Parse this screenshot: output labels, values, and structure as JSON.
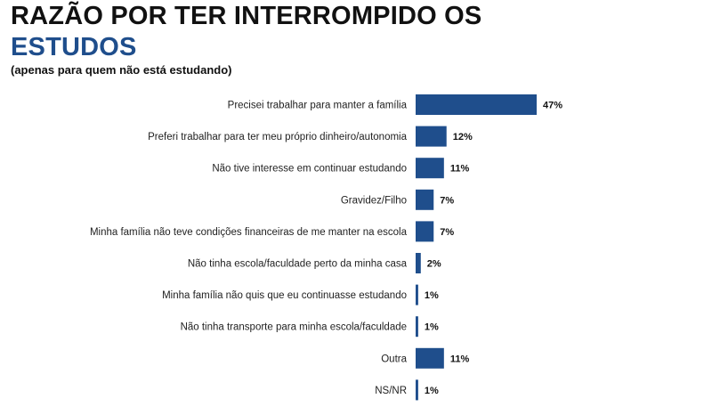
{
  "header": {
    "title_line1": "RAZÃO POR TER INTERROMPIDO OS",
    "title_line2": "ESTUDOS",
    "subtitle": "(apenas para quem não está estudando)"
  },
  "colors": {
    "bar": "#1f4e8c",
    "title_accent": "#1f4e8c"
  },
  "chart_data": {
    "type": "bar",
    "orientation": "horizontal",
    "title": "RAZÃO POR TER INTERROMPIDO OS ESTUDOS",
    "subtitle": "(apenas para quem não está estudando)",
    "xlabel": "",
    "ylabel": "",
    "xlim": [
      0,
      47
    ],
    "grid": false,
    "categories": [
      "Precisei trabalhar para manter a família",
      "Preferi trabalhar para ter meu próprio dinheiro/autonomia",
      "Não tive interesse em continuar estudando",
      "Gravidez/Filho",
      "Minha família não teve condições financeiras de me manter na escola",
      "Não tinha escola/faculdade perto da minha casa",
      "Minha família não quis que eu continuasse estudando",
      "Não tinha transporte para minha escola/faculdade",
      "Outra",
      "NS/NR"
    ],
    "values": [
      47,
      12,
      11,
      7,
      7,
      2,
      1,
      1,
      11,
      1
    ],
    "value_labels": [
      "47%",
      "12%",
      "11%",
      "7%",
      "7%",
      "2%",
      "1%",
      "1%",
      "11%",
      "1%"
    ]
  }
}
